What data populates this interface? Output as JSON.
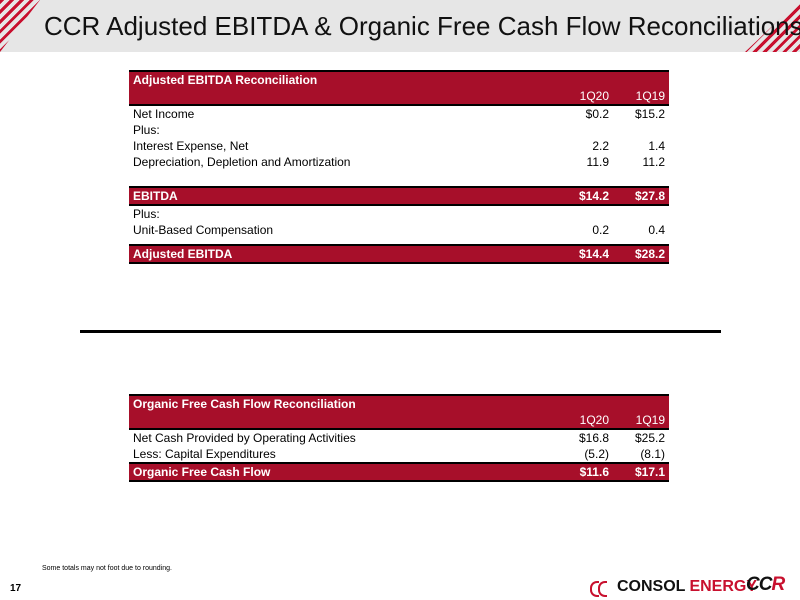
{
  "title": "CCR Adjusted EBITDA & Organic Free Cash Flow Reconciliations",
  "ebitda_table": {
    "title": "Adjusted EBITDA Reconciliation",
    "columns": [
      "1Q20",
      "1Q19"
    ],
    "rows": [
      {
        "label": "Net Income",
        "v1": "$0.2",
        "v2": "$15.2"
      },
      {
        "label": "Plus:",
        "v1": "",
        "v2": ""
      },
      {
        "label": "Interest Expense, Net",
        "v1": "2.2",
        "v2": "1.4"
      },
      {
        "label": "Depreciation, Depletion and Amortization",
        "v1": "11.9",
        "v2": "11.2"
      }
    ],
    "ebitda": {
      "label": "EBITDA",
      "v1": "$14.2",
      "v2": "$27.8"
    },
    "rows2": [
      {
        "label": "Plus:",
        "v1": "",
        "v2": ""
      },
      {
        "label": "Unit-Based Compensation",
        "v1": "0.2",
        "v2": "0.4"
      }
    ],
    "total": {
      "label": "Adjusted EBITDA",
      "v1": "$14.4",
      "v2": "$28.2"
    }
  },
  "fcf_table": {
    "title": "Organic Free Cash Flow Reconciliation",
    "columns": [
      "1Q20",
      "1Q19"
    ],
    "rows": [
      {
        "label": "Net Cash Provided by Operating Activities",
        "v1": "$16.8",
        "v2": "$25.2"
      },
      {
        "label": "Less: Capital Expenditures",
        "v1": "(5.2)",
        "v2": "(8.1)"
      }
    ],
    "total": {
      "label": "Organic Free Cash Flow",
      "v1": "$11.6",
      "v2": "$17.1"
    }
  },
  "footnote": "Some totals may not foot due to rounding.",
  "page_number": "17",
  "logo": {
    "consol": "CONSOL",
    "energy": "ENERGY",
    "ccr_c": "CC",
    "ccr_r": "R"
  },
  "colors": {
    "accent": "#a70f2a",
    "header_band": "#e6e6e6"
  }
}
